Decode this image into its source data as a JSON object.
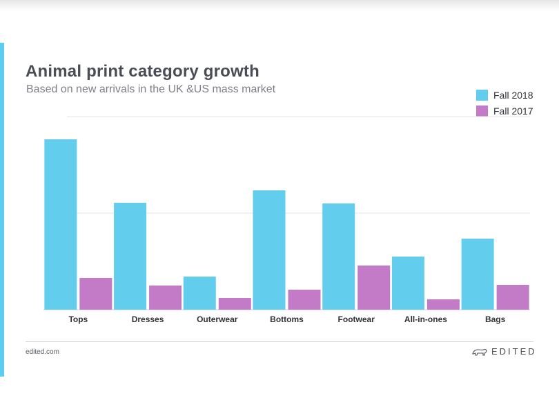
{
  "title": "Animal print category growth",
  "subtitle": "Based on new arrivals in the UK &US mass market",
  "footer": {
    "site": "edited.com",
    "brand": "EDITED",
    "brand_icon": "polar-bear-icon"
  },
  "colors": {
    "accent": "#5fcdee",
    "fall_2018": "#63cdee",
    "fall_2017": "#c37bc8",
    "grid": "#e1e4e8"
  },
  "chart_data": {
    "type": "bar",
    "categories": [
      "Tops",
      "Dresses",
      "Outerwear",
      "Bottoms",
      "Footwear",
      "All-in-ones",
      "Bags"
    ],
    "series": [
      {
        "name": "Fall 2018",
        "color": "#63cdee",
        "values": [
          247,
          155,
          48,
          173,
          154,
          77,
          103
        ]
      },
      {
        "name": "Fall 2017",
        "color": "#c37bc8",
        "values": [
          46,
          35,
          17,
          29,
          64,
          15,
          36
        ]
      }
    ],
    "ylim": [
      0,
      280
    ],
    "gridlines": [
      0,
      140,
      280
    ],
    "legend": "top-right",
    "xlabel": "",
    "ylabel": ""
  }
}
